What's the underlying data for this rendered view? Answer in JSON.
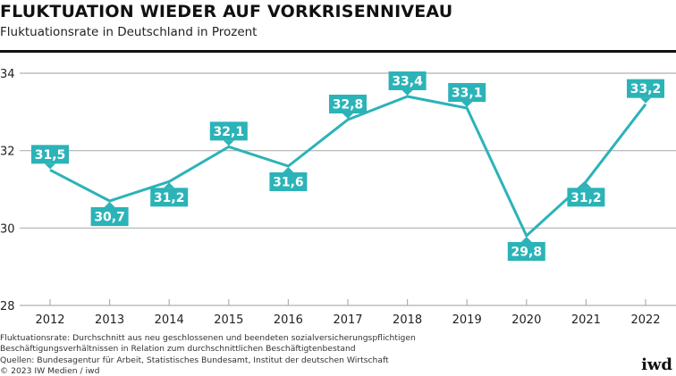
{
  "header": {
    "title": "FLUKTUATION WIEDER AUF VORKRISENNIVEAU",
    "subtitle": "Fluktuationsrate in Deutschland in Prozent"
  },
  "colors": {
    "series": "#2bb3b8",
    "label_bg": "#2bb3b8",
    "label_text": "#ffffff",
    "grid": "#b0b0b0",
    "axis_text": "#222222"
  },
  "chart_data": {
    "type": "line",
    "title": "FLUKTUATION WIEDER AUF VORKRISENNIVEAU",
    "subtitle": "Fluktuationsrate in Deutschland in Prozent",
    "xlabel": "",
    "ylabel": "",
    "categories": [
      "2012",
      "2013",
      "2014",
      "2015",
      "2016",
      "2017",
      "2018",
      "2019",
      "2020",
      "2021",
      "2022"
    ],
    "series": [
      {
        "name": "Fluktuationsrate",
        "values": [
          31.5,
          30.7,
          31.2,
          32.1,
          31.6,
          32.8,
          33.4,
          33.1,
          29.8,
          31.2,
          33.2
        ],
        "labels": [
          "31,5",
          "30,7",
          "31,2",
          "32,1",
          "31,6",
          "32,8",
          "33,4",
          "33,1",
          "29,8",
          "31,2",
          "33,2"
        ],
        "label_position": [
          "above",
          "below",
          "below",
          "above",
          "below",
          "above",
          "above",
          "above",
          "below",
          "below",
          "above"
        ]
      }
    ],
    "ylim": [
      28,
      34
    ],
    "yticks": [
      28,
      30,
      32,
      34
    ],
    "ytick_labels": [
      "28",
      "30",
      "32",
      "34"
    ],
    "grid": true,
    "legend": "none"
  },
  "footer": {
    "note_line1": "Fluktuationsrate: Durchschnitt aus neu geschlossenen und beendeten sozialversicherungspflichtigen",
    "note_line2": "Beschäftigungsverhältnissen in Relation zum durchschnittlichen Beschäftigtenbestand",
    "sources": "Quellen: Bundesagentur für Arbeit, Statistisches Bundesamt, Institut der deutschen Wirtschaft",
    "copyright": "© 2023 IW Medien / iwd",
    "logo": "iwd"
  }
}
